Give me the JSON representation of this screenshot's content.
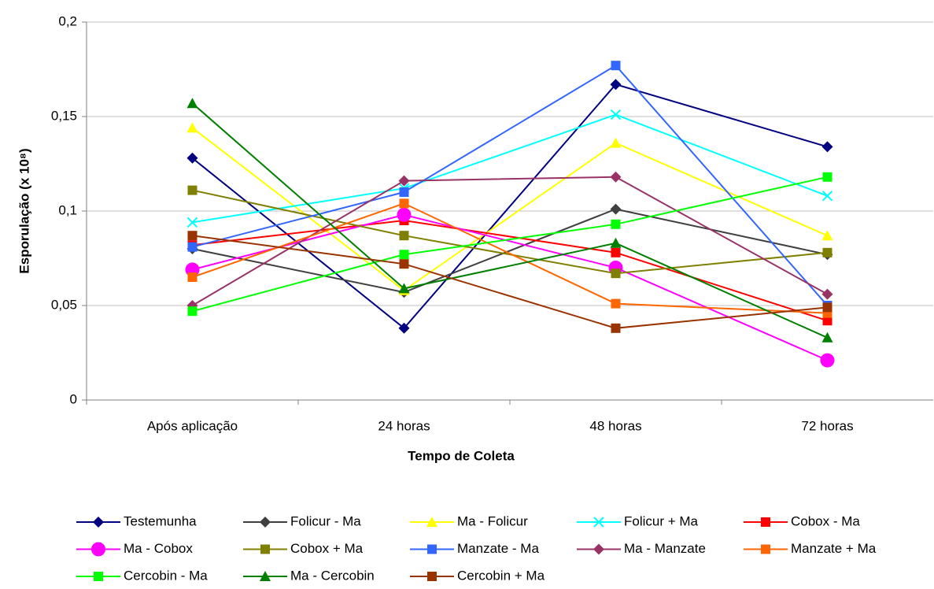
{
  "chart_data": {
    "type": "line",
    "y_label": "Esporulação (x 10⁸)",
    "x_label": "Tempo de Coleta",
    "categories": [
      "Após aplicação",
      "24 horas",
      "48 horas",
      "72 horas"
    ],
    "ylim": [
      0,
      0.2
    ],
    "yticks": [
      0,
      {
        "value": 0.05,
        "label": "0,05"
      },
      {
        "value": 0.1,
        "label": "0,1"
      },
      {
        "value": 0.15,
        "label": "0,15"
      },
      {
        "value": 0.2,
        "label": "0,2"
      }
    ],
    "grid": true,
    "legend": "bottom",
    "series": [
      {
        "name": "Testemunha",
        "color": "#000080",
        "marker": "diamond",
        "values": [
          0.128,
          0.038,
          0.167,
          0.134
        ]
      },
      {
        "name": "Folicur - Ma",
        "color": "#404040",
        "marker": "diamond",
        "values": [
          0.08,
          0.057,
          0.101,
          0.077
        ]
      },
      {
        "name": "Ma - Folicur",
        "color": "#FFFF00",
        "marker": "triangle",
        "values": [
          0.144,
          0.058,
          0.136,
          0.087
        ]
      },
      {
        "name": "Folicur + Ma",
        "color": "#00FFFF",
        "marker": "x",
        "values": [
          0.094,
          0.112,
          0.151,
          0.108
        ]
      },
      {
        "name": "Cobox - Ma",
        "color": "#FF0000",
        "marker": "square",
        "values": [
          0.082,
          0.095,
          0.078,
          0.042
        ]
      },
      {
        "name": "Ma - Cobox",
        "color": "#FF00FF",
        "marker": "circle",
        "values": [
          0.069,
          0.098,
          0.07,
          0.021
        ]
      },
      {
        "name": "Cobox + Ma",
        "color": "#808000",
        "marker": "square",
        "values": [
          0.111,
          0.087,
          0.067,
          0.078
        ]
      },
      {
        "name": "Manzate - Ma",
        "color": "#3366FF",
        "marker": "square",
        "values": [
          0.081,
          0.11,
          0.177,
          0.05
        ]
      },
      {
        "name": "Ma - Manzate",
        "color": "#993366",
        "marker": "diamond",
        "values": [
          0.05,
          0.116,
          0.118,
          0.056
        ]
      },
      {
        "name": "Manzate + Ma",
        "color": "#FF6600",
        "marker": "square",
        "values": [
          0.065,
          0.104,
          0.051,
          0.046
        ]
      },
      {
        "name": "Cercobin - Ma",
        "color": "#00FF00",
        "marker": "square",
        "values": [
          0.047,
          0.077,
          0.093,
          0.118
        ]
      },
      {
        "name": "Ma - Cercobin",
        "color": "#008000",
        "marker": "triangle",
        "values": [
          0.157,
          0.059,
          0.083,
          0.033
        ]
      },
      {
        "name": "Cercobin + Ma",
        "color": "#993300",
        "marker": "square",
        "values": [
          0.087,
          0.072,
          0.038,
          0.049
        ]
      }
    ]
  }
}
